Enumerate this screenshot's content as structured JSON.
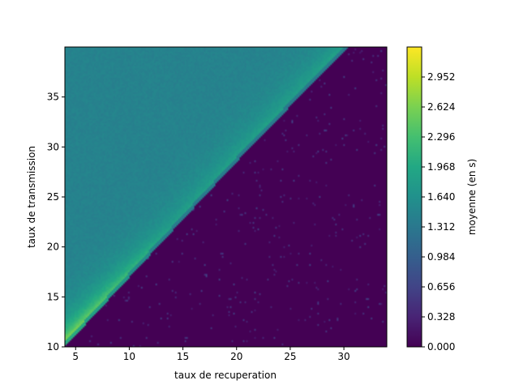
{
  "chart_data": {
    "type": "heatmap",
    "title": "",
    "xlabel": "taux de recuperation",
    "ylabel": "taux de transmission",
    "xlim": [
      4,
      34
    ],
    "ylim": [
      10,
      40
    ],
    "xticks": [
      5,
      10,
      15,
      20,
      25,
      30
    ],
    "yticks": [
      10,
      15,
      20,
      25,
      30,
      35
    ],
    "xtick_labels": [
      "5",
      "10",
      "15",
      "20",
      "25",
      "30"
    ],
    "ytick_labels": [
      "10",
      "15",
      "20",
      "25",
      "30",
      "35"
    ],
    "colormap": "viridis",
    "boundary": {
      "description_points": [
        [
          4,
          10
        ],
        [
          20,
          28.5
        ],
        [
          29,
          38.5
        ],
        [
          30.5,
          40
        ]
      ]
    },
    "regions": {
      "above_boundary": {
        "typical_value": 1.45,
        "near_boundary_value": 2.2,
        "peak_value": 3.2
      },
      "below_boundary": {
        "typical_value": 0.0
      }
    },
    "colorbar": {
      "label": "moyenne (en s)",
      "vmin": 0.0,
      "vmax": 3.28,
      "ticks": [
        0.0,
        0.328,
        0.656,
        0.984,
        1.312,
        1.64,
        1.968,
        2.296,
        2.624,
        2.952
      ],
      "tick_labels": [
        "0.000",
        "0.328",
        "0.656",
        "0.984",
        "1.312",
        "1.640",
        "1.968",
        "2.296",
        "2.624",
        "2.952"
      ]
    }
  }
}
